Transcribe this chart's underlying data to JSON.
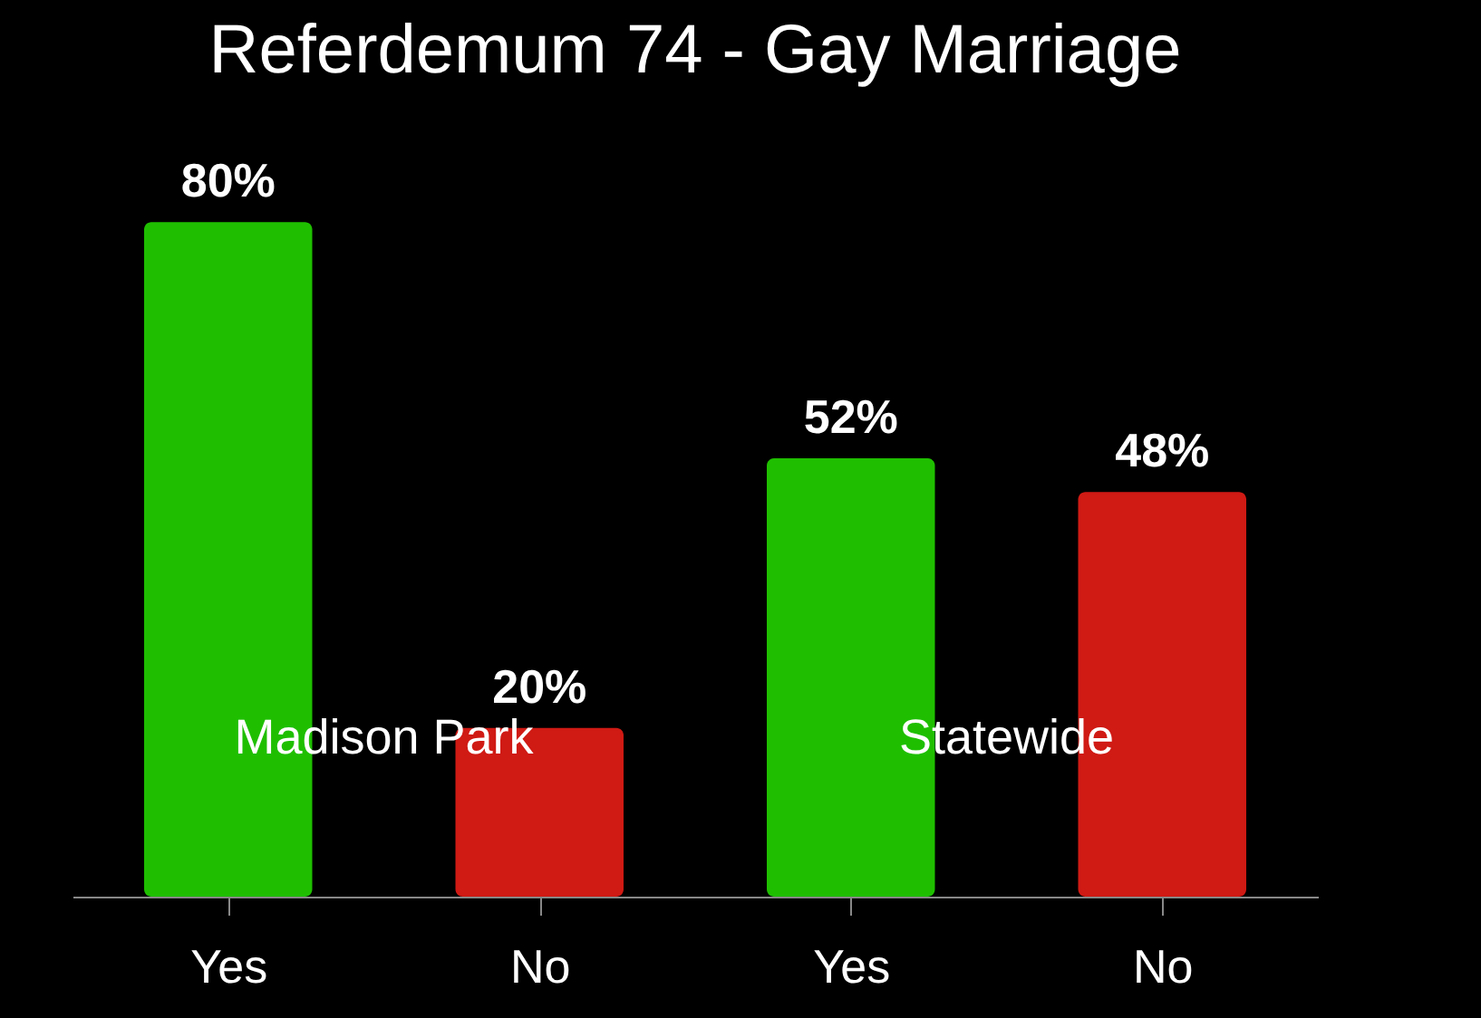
{
  "chart_data": {
    "type": "bar",
    "title": "Referdemum 74 - Gay Marriage",
    "categories": [
      "Yes",
      "No",
      "Yes",
      "No"
    ],
    "values": [
      80,
      20,
      52,
      48
    ],
    "colors": [
      "#1fbf00",
      "#d01a14",
      "#1fbf00",
      "#d01a14"
    ],
    "value_labels": [
      "80%",
      "20%",
      "52%",
      "48%"
    ],
    "annotations": [
      "Madison Park",
      "Statewide"
    ],
    "grid": false
  }
}
